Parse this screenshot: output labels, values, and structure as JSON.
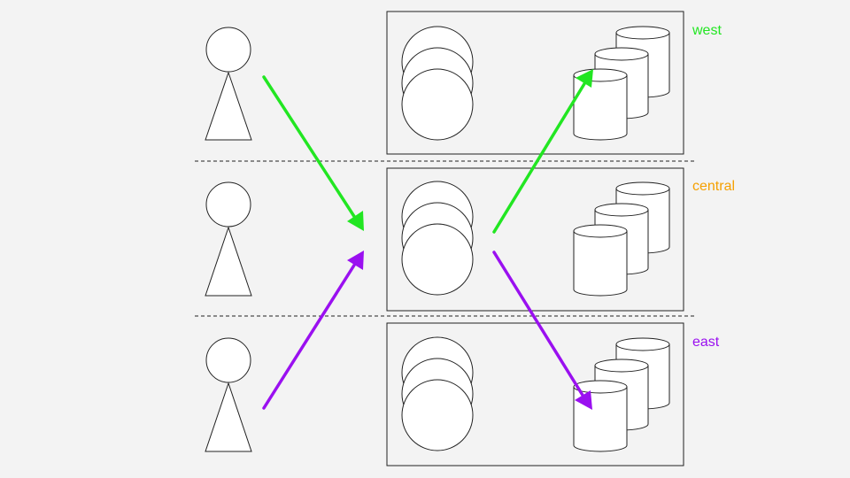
{
  "regions": [
    {
      "label": "west",
      "color": "#22e622"
    },
    {
      "label": "central",
      "color": "#f5a000"
    },
    {
      "label": "east",
      "color": "#9a10f0"
    }
  ],
  "arrows": [
    {
      "from": "user-west",
      "to": "central-servers",
      "color": "#22e622"
    },
    {
      "from": "central-servers",
      "to": "west-database",
      "color": "#22e622"
    },
    {
      "from": "user-east",
      "to": "central-servers",
      "color": "#9a10f0"
    },
    {
      "from": "central-servers",
      "to": "east-database",
      "color": "#9a10f0"
    }
  ],
  "icons": {
    "user": "person-icon",
    "server": "server-stack-icon",
    "database": "database-icon"
  }
}
